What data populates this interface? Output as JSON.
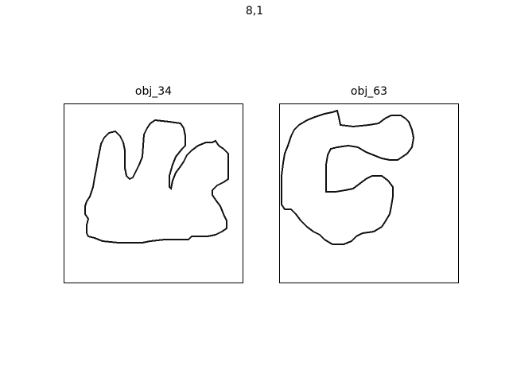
{
  "figure": {
    "title": "8,1"
  },
  "panels": [
    {
      "title": "obj_34"
    },
    {
      "title": "obj_63"
    }
  ],
  "colors": {
    "outline": "#111111",
    "frame": "#000000",
    "background": "#ffffff"
  }
}
